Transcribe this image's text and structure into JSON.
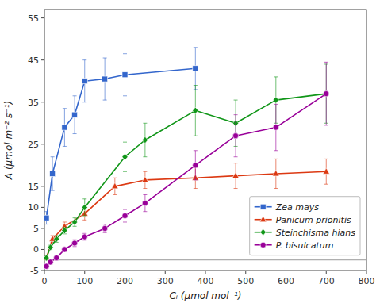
{
  "chart_data": {
    "type": "line",
    "xlabel": "Cᵢ (μmol mol⁻¹)",
    "ylabel": "A (μmol m⁻² s⁻¹)",
    "xlim": [
      0,
      800
    ],
    "ylim": [
      -5,
      57
    ],
    "xticks": [
      0,
      100,
      200,
      300,
      400,
      500,
      600,
      700,
      800
    ],
    "yticks": [
      -5,
      0,
      5,
      10,
      15,
      25,
      35,
      45,
      55
    ],
    "legend": "lower right",
    "hline": -2.5,
    "series": [
      {
        "name": "Zea mays",
        "marker": "square",
        "x": [
          5,
          20,
          50,
          75,
          100,
          150,
          200,
          375
        ],
        "values": [
          7.5,
          18,
          29,
          32,
          40,
          40.5,
          41.5,
          43
        ],
        "yerr": [
          1.5,
          4.0,
          4.5,
          4.5,
          5.0,
          5.0,
          5.0,
          5.0
        ]
      },
      {
        "name": "Panicum prionitis",
        "marker": "triangle",
        "x": [
          5,
          20,
          50,
          100,
          175,
          250,
          375,
          475,
          575,
          700
        ],
        "values": [
          -2,
          2.5,
          5.5,
          8.5,
          15,
          16.5,
          17,
          17.5,
          18,
          18.5
        ],
        "yerr": [
          0.5,
          0.8,
          1.0,
          1.5,
          2.0,
          2.0,
          2.5,
          3.0,
          3.5,
          3.0
        ]
      },
      {
        "name": "Steinchisma hians",
        "marker": "diamond",
        "x": [
          5,
          15,
          30,
          50,
          75,
          100,
          200,
          250,
          375,
          475,
          575,
          700
        ],
        "values": [
          -2,
          0.5,
          2.5,
          4.5,
          6.5,
          10,
          22,
          26,
          33,
          30,
          35.5,
          37
        ],
        "yerr": [
          0.5,
          0.5,
          0.8,
          0.8,
          1.0,
          2.0,
          3.5,
          4.0,
          6.0,
          5.5,
          5.5,
          7.0
        ]
      },
      {
        "name": "P. bisulcatum",
        "marker": "circle",
        "x": [
          5,
          15,
          30,
          50,
          75,
          100,
          150,
          200,
          250,
          375,
          475,
          575,
          700
        ],
        "values": [
          -4,
          -3,
          -2,
          0,
          1.5,
          3,
          5,
          8,
          11,
          20,
          27,
          29,
          37
        ],
        "yerr": [
          0.4,
          0.4,
          0.5,
          0.5,
          0.8,
          0.8,
          1.0,
          1.5,
          2.0,
          3.5,
          5.0,
          5.5,
          7.5
        ]
      }
    ]
  }
}
